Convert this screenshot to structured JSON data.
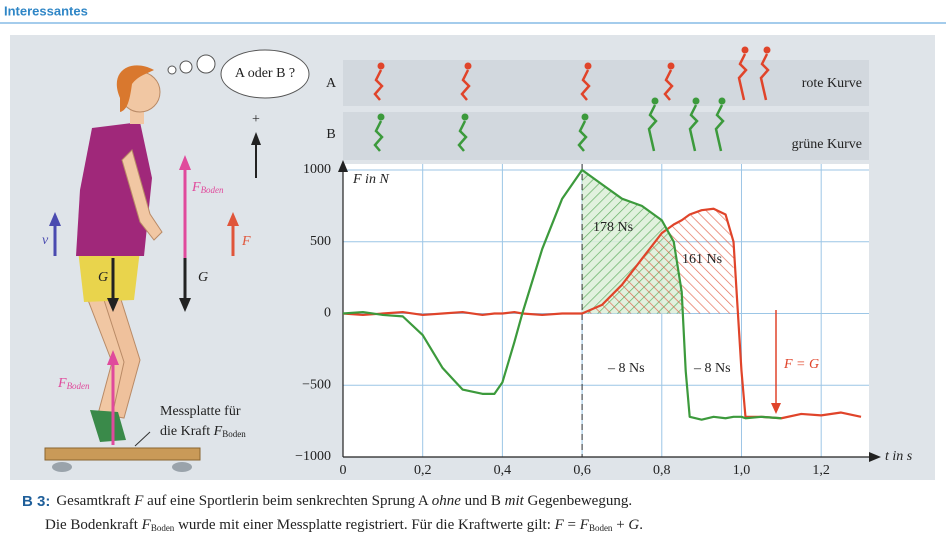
{
  "header": {
    "title": "Interessantes"
  },
  "illustration": {
    "bubble": "A oder B ?",
    "sign": "+",
    "v": "v",
    "f": "F",
    "g_upper": "G",
    "g_body": "G",
    "f_boden_upper": {
      "symbol": "F",
      "sub": "Boden"
    },
    "f_boden_lower": {
      "symbol": "F",
      "sub": "Boden"
    },
    "plate_line1": "Messplatte für",
    "plate_line2": {
      "text": "die Kraft ",
      "symbol": "F",
      "sub": "Boden"
    }
  },
  "chart_data": {
    "type": "line",
    "y_label": "F in N",
    "x_label": "t in s",
    "x": [
      0,
      0.05,
      0.1,
      0.15,
      0.2,
      0.25,
      0.3,
      0.35,
      0.38,
      0.4,
      0.43,
      0.45,
      0.5,
      0.55,
      0.6,
      0.65,
      0.7,
      0.75,
      0.8,
      0.83,
      0.85,
      0.86,
      0.87,
      0.9,
      0.93,
      0.96,
      0.98,
      1.0,
      1.01,
      1.05,
      1.1,
      1.15,
      1.2,
      1.25,
      1.3
    ],
    "series": [
      {
        "name": "rote Kurve",
        "label": "A",
        "color": "#e0442a",
        "values": [
          0,
          -10,
          0,
          10,
          -10,
          0,
          10,
          -10,
          0,
          0,
          10,
          0,
          -10,
          0,
          0,
          60,
          200,
          380,
          560,
          620,
          650,
          670,
          690,
          720,
          730,
          690,
          500,
          -400,
          -720,
          -720,
          -730,
          -700,
          -710,
          -690,
          -720
        ]
      },
      {
        "name": "grüne Kurve",
        "label": "B",
        "color": "#3c9a3c",
        "values": [
          0,
          10,
          -10,
          -20,
          -150,
          -380,
          -530,
          -560,
          -560,
          -480,
          -200,
          0,
          450,
          800,
          1000,
          900,
          800,
          750,
          650,
          500,
          150,
          -400,
          -720,
          -740,
          -720,
          -730,
          -720,
          -720,
          -730,
          -720,
          -730,
          null,
          null,
          null,
          null
        ]
      }
    ],
    "annotations": [
      "178 Ns",
      "161 Ns",
      "– 8 Ns",
      "– 8 Ns",
      "F = G"
    ],
    "xlim": [
      0,
      1.32
    ],
    "ylim": [
      -1000,
      1000
    ],
    "xticks": [
      0,
      {
        "value": 0.2,
        "label": "0,2"
      },
      {
        "value": 0.4,
        "label": "0,4"
      },
      {
        "value": 0.6,
        "label": "0,6"
      },
      {
        "value": 0.8,
        "label": "0,8"
      },
      {
        "value": 1.0,
        "label": "1,0"
      },
      {
        "value": 1.2,
        "label": "1,2"
      }
    ],
    "yticks": [
      {
        "value": -1000,
        "label": "−1000"
      },
      {
        "value": -500,
        "label": "−500"
      },
      0,
      500,
      1000
    ],
    "grid": true
  },
  "caption": {
    "label": "B 3:",
    "line1": [
      "Gesamtkraft ",
      "F",
      " auf eine Sportlerin beim senkrechten Sprung A ",
      "ohne",
      " und B ",
      "mit",
      " Gegenbewegung."
    ],
    "line2": [
      "Die Bodenkraft ",
      "F",
      "Boden",
      " wurde mit einer Messplatte registriert. Für die Kraftwerte gilt: ",
      "F",
      " = ",
      "F",
      "Boden",
      " + ",
      "G",
      "."
    ]
  }
}
